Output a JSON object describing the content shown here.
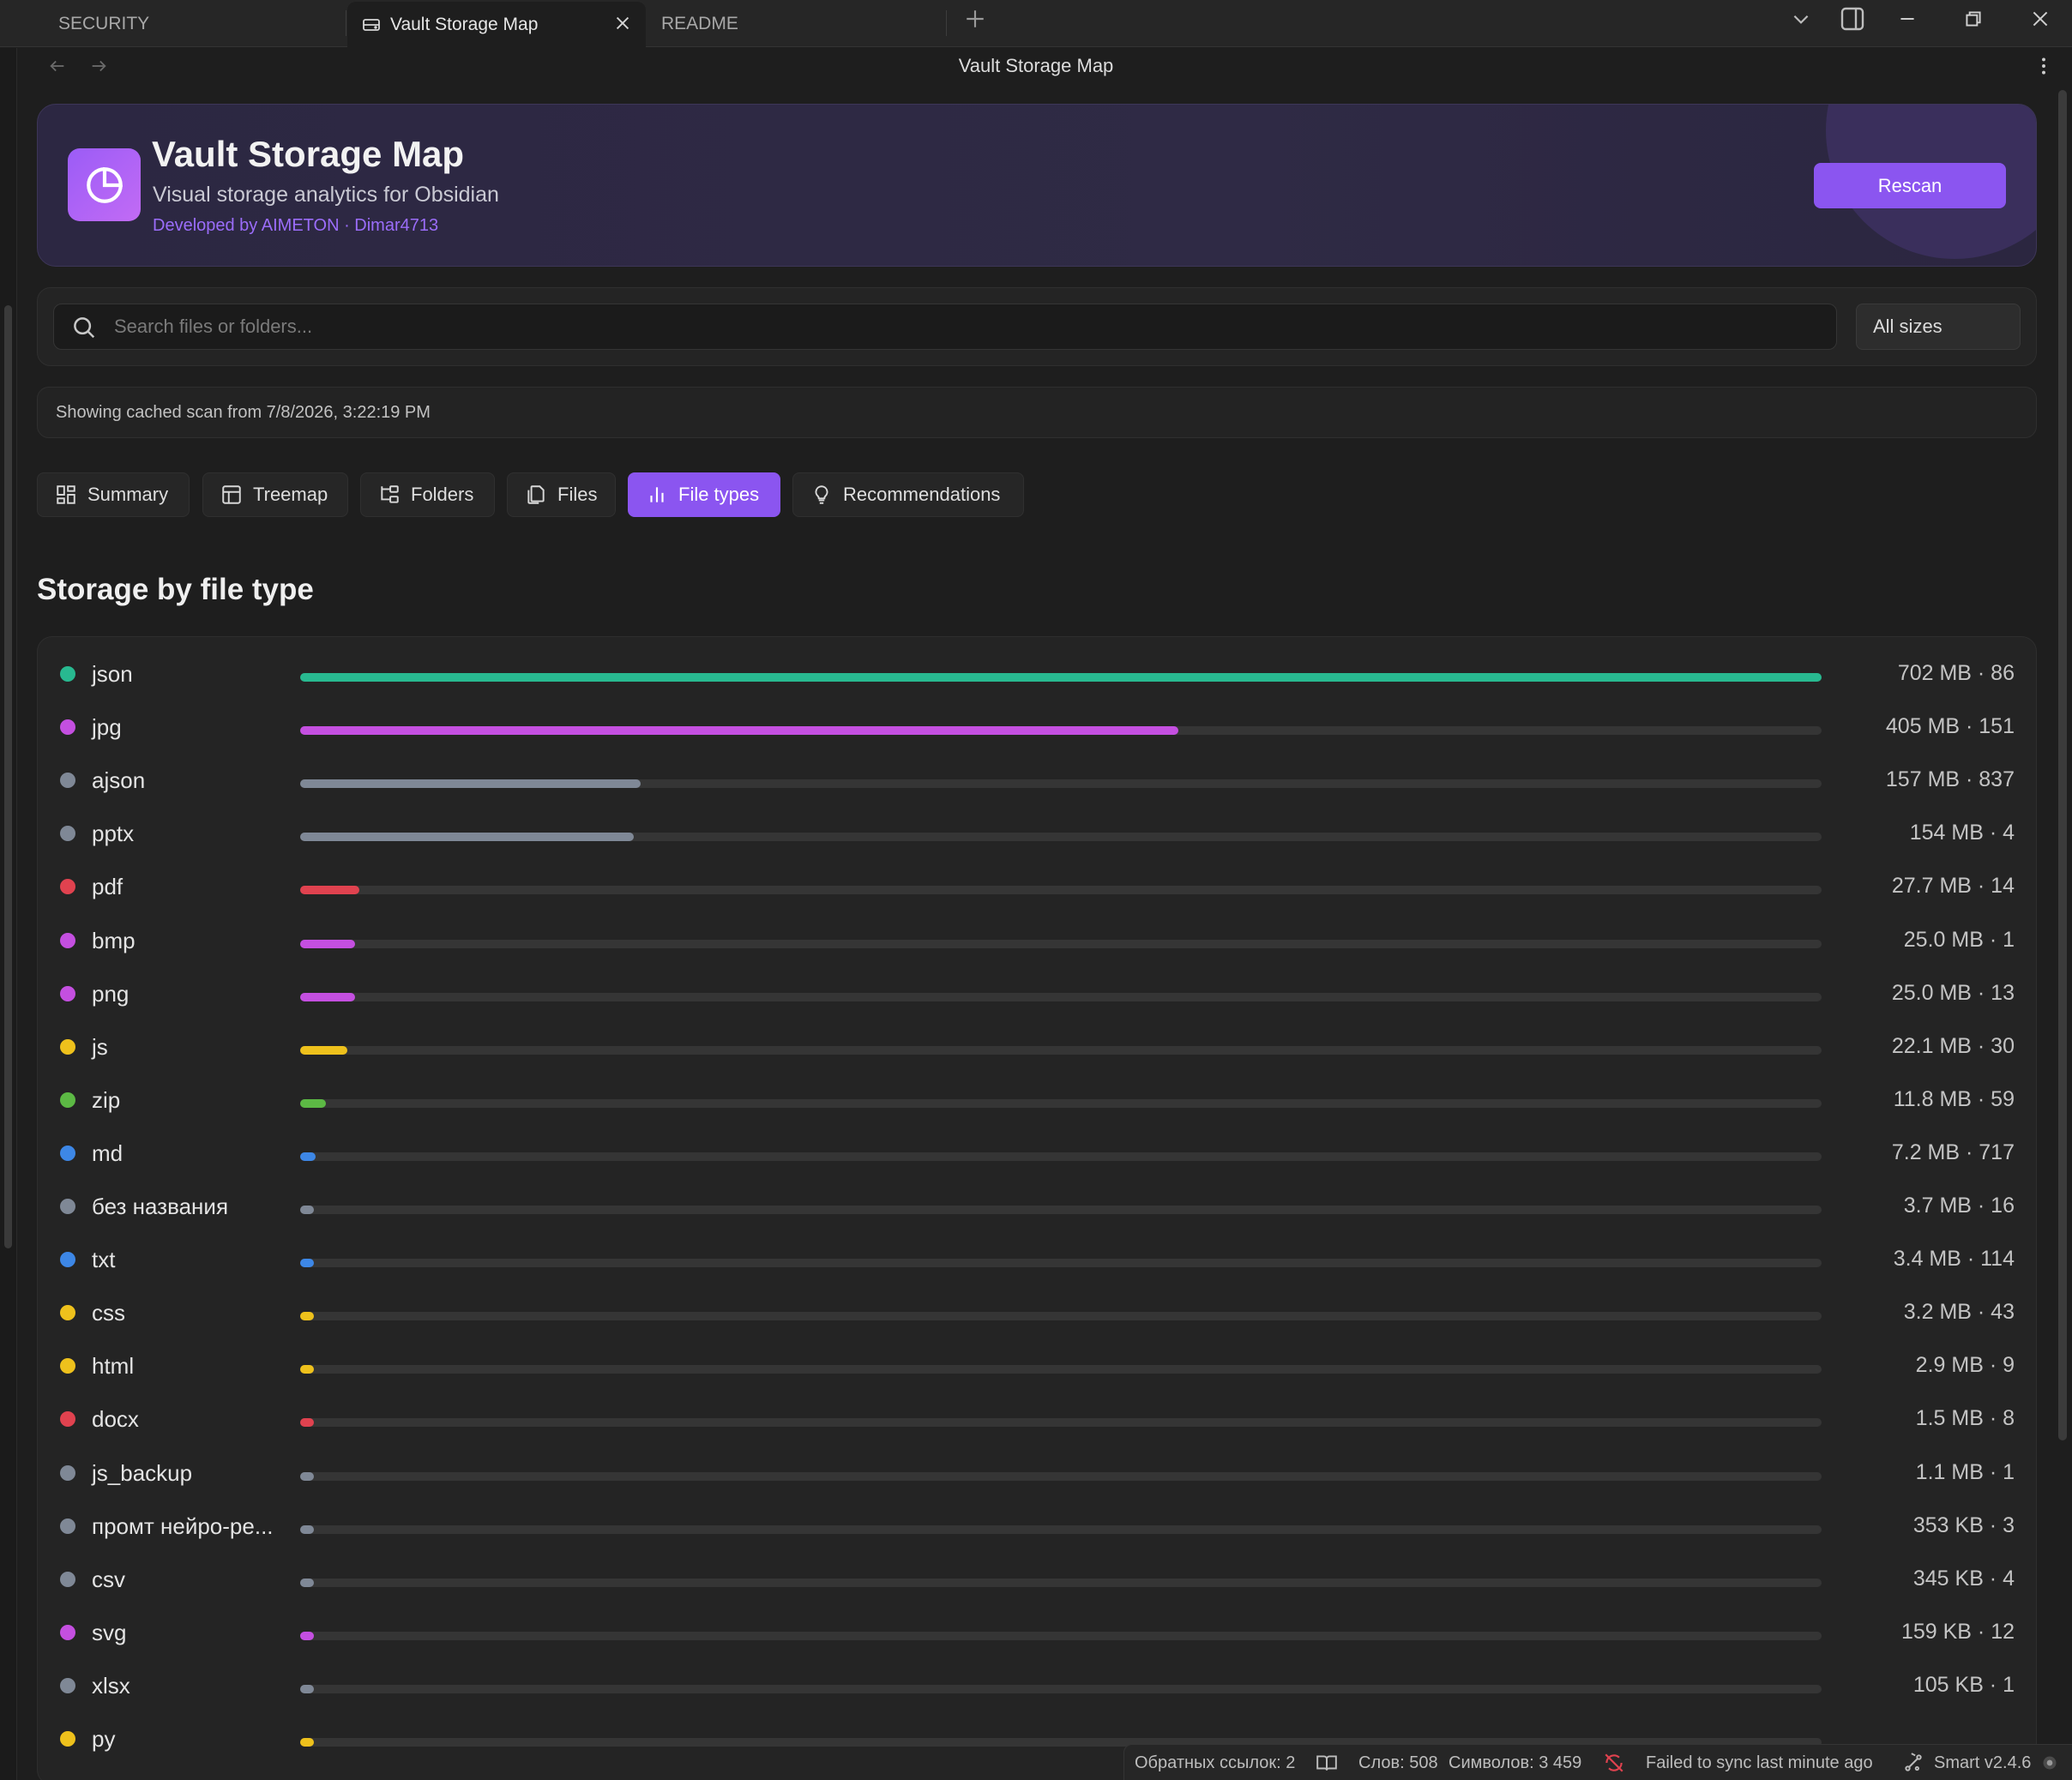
{
  "tabs": [
    {
      "label": "SECURITY"
    },
    {
      "label": "Vault Storage Map"
    },
    {
      "label": "README"
    }
  ],
  "view": {
    "title": "Vault Storage Map"
  },
  "hero": {
    "title": "Vault Storage Map",
    "subtitle": "Visual storage analytics for Obsidian",
    "developer": "Developed by AIMETON · Dimar4713",
    "rescan_label": "Rescan"
  },
  "search": {
    "placeholder": "Search files or folders...",
    "value": "",
    "size_filter": "All sizes"
  },
  "status": {
    "text": "Showing cached scan from 7/8/2026, 3:22:19 PM"
  },
  "view_tabs": [
    {
      "label": "Summary",
      "icon": "grid-icon",
      "active": false
    },
    {
      "label": "Treemap",
      "icon": "treemap-icon",
      "active": false
    },
    {
      "label": "Folders",
      "icon": "folder-tree-icon",
      "active": false
    },
    {
      "label": "Files",
      "icon": "files-icon",
      "active": false
    },
    {
      "label": "File types",
      "icon": "bar-chart-icon",
      "active": true
    },
    {
      "label": "Recommendations",
      "icon": "lightbulb-icon",
      "active": false
    }
  ],
  "section": {
    "title": "Storage by file type"
  },
  "file_types": [
    {
      "name": "json",
      "value": "702 MB · 86",
      "fraction": 1.0,
      "color": "#28b990"
    },
    {
      "name": "jpg",
      "value": "405 MB · 151",
      "fraction": 0.577,
      "color": "#c44fe0"
    },
    {
      "name": "ajson",
      "value": "157 MB · 837",
      "fraction": 0.224,
      "color": "#7f8896"
    },
    {
      "name": "pptx",
      "value": "154 MB · 4",
      "fraction": 0.219,
      "color": "#7f8896"
    },
    {
      "name": "pdf",
      "value": "27.7 MB · 14",
      "fraction": 0.039,
      "color": "#e0424f"
    },
    {
      "name": "bmp",
      "value": "25.0 MB · 1",
      "fraction": 0.036,
      "color": "#c44fe0"
    },
    {
      "name": "png",
      "value": "25.0 MB · 13",
      "fraction": 0.036,
      "color": "#c44fe0"
    },
    {
      "name": "js",
      "value": "22.1 MB · 30",
      "fraction": 0.031,
      "color": "#eec11c"
    },
    {
      "name": "zip",
      "value": "11.8 MB · 59",
      "fraction": 0.017,
      "color": "#5cb944"
    },
    {
      "name": "md",
      "value": "7.2 MB · 717",
      "fraction": 0.01,
      "color": "#3d87e6"
    },
    {
      "name": "без названия",
      "value": "3.7 MB · 16",
      "fraction": 0.005,
      "color": "#7f8896"
    },
    {
      "name": "txt",
      "value": "3.4 MB · 114",
      "fraction": 0.005,
      "color": "#3d87e6"
    },
    {
      "name": "css",
      "value": "3.2 MB · 43",
      "fraction": 0.005,
      "color": "#eec11c"
    },
    {
      "name": "html",
      "value": "2.9 MB · 9",
      "fraction": 0.004,
      "color": "#eec11c"
    },
    {
      "name": "docx",
      "value": "1.5 MB · 8",
      "fraction": 0.002,
      "color": "#e0424f"
    },
    {
      "name": "js_backup",
      "value": "1.1 MB · 1",
      "fraction": 0.002,
      "color": "#7f8896"
    },
    {
      "name": "промт нейро-ре...",
      "value": "353 KB · 3",
      "fraction": 0.0005,
      "color": "#7f8896"
    },
    {
      "name": "csv",
      "value": "345 KB · 4",
      "fraction": 0.0005,
      "color": "#7f8896"
    },
    {
      "name": "svg",
      "value": "159 KB · 12",
      "fraction": 0.0002,
      "color": "#c44fe0"
    },
    {
      "name": "xlsx",
      "value": "105 KB · 1",
      "fraction": 0.0001,
      "color": "#7f8896"
    },
    {
      "name": "py",
      "value": "",
      "fraction": 0.0001,
      "color": "#eec11c"
    }
  ],
  "statusbar": {
    "backlinks": "Обратных ссылок: 2",
    "words": "Слов: 508",
    "chars": "Символов: 3 459",
    "sync": "Failed to sync last minute ago",
    "smart": "Smart v2.4.6"
  },
  "colors": {
    "accent": "#8b55f0",
    "background": "#1e1e1e",
    "card": "#242424"
  }
}
